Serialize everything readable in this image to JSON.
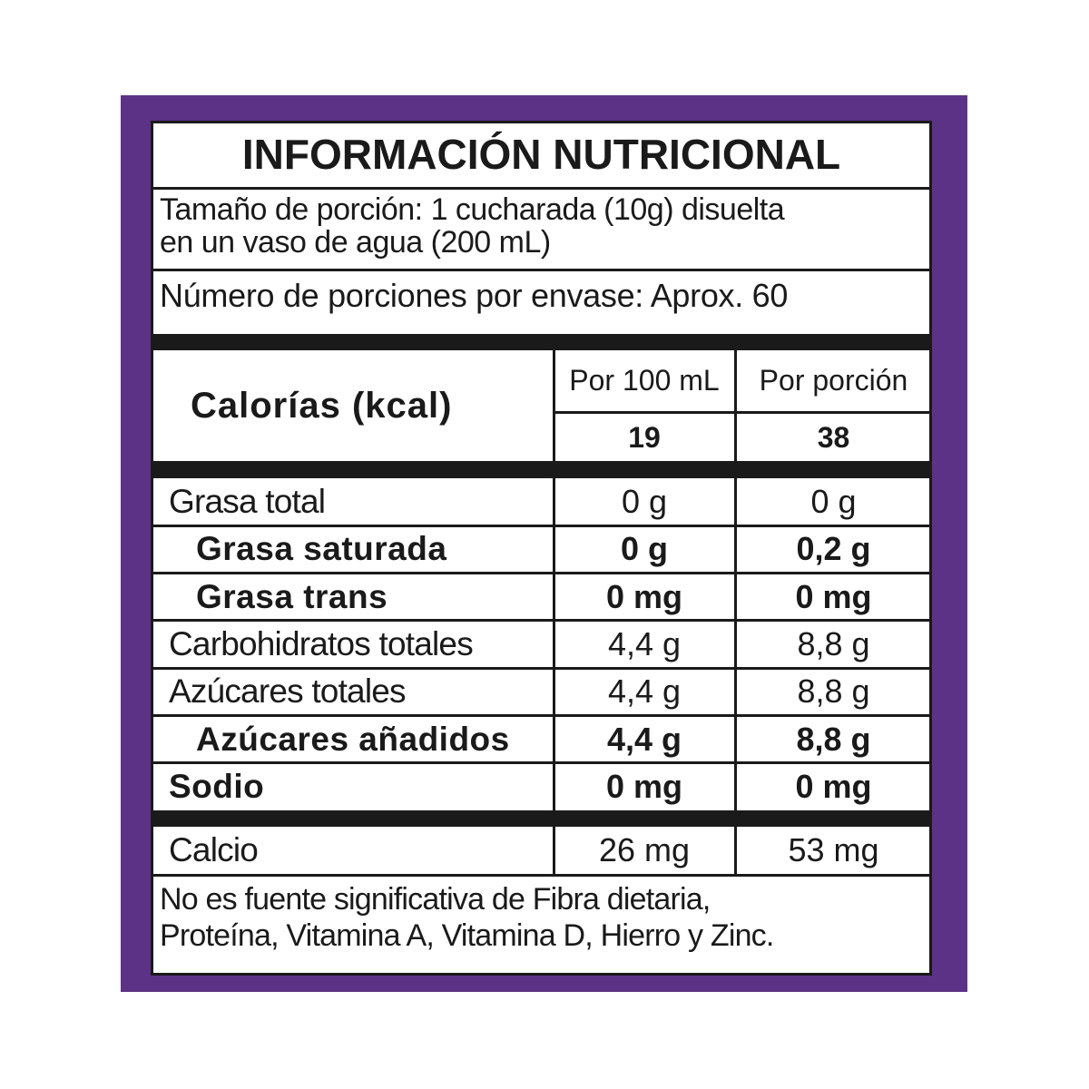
{
  "title": "INFORMACIÓN NUTRICIONAL",
  "serving_size": [
    "Tamaño de porción: 1 cucharada (10g) disuelta",
    "en un vaso de agua (200 mL)"
  ],
  "servings_per_container": "Número de porciones por envase: Aprox. 60",
  "calories": {
    "label": "Calorías (kcal)",
    "headers": [
      "Por 100 mL",
      "Por porción"
    ],
    "values": [
      19,
      38
    ]
  },
  "nutrients": [
    {
      "name": "Grasa total",
      "per_100ml": "0 g",
      "per_portion": "0 g",
      "bold": false,
      "indent": false
    },
    {
      "name": "Grasa saturada",
      "per_100ml": "0 g",
      "per_portion": "0,2 g",
      "bold": true,
      "indent": true
    },
    {
      "name": "Grasa trans",
      "per_100ml": "0 mg",
      "per_portion": "0 mg",
      "bold": true,
      "indent": true
    },
    {
      "name": "Carbohidratos totales",
      "per_100ml": "4,4 g",
      "per_portion": "8,8 g",
      "bold": false,
      "indent": false
    },
    {
      "name": "Azúcares totales",
      "per_100ml": "4,4 g",
      "per_portion": "8,8 g",
      "bold": false,
      "indent": false
    },
    {
      "name": "Azúcares añadidos",
      "per_100ml": "4,4 g",
      "per_portion": "8,8 g",
      "bold": true,
      "indent": true
    },
    {
      "name": "Sodio",
      "per_100ml": "0 mg",
      "per_portion": "0 mg",
      "bold": true,
      "indent": false
    }
  ],
  "extra": {
    "name": "Calcio",
    "per_100ml": "26 mg",
    "per_portion": "53 mg"
  },
  "footnote": [
    "No es fuente significativa de Fibra dietaria,",
    "Proteína, Vitamina A, Vitamina D, Hierro y Zinc."
  ]
}
